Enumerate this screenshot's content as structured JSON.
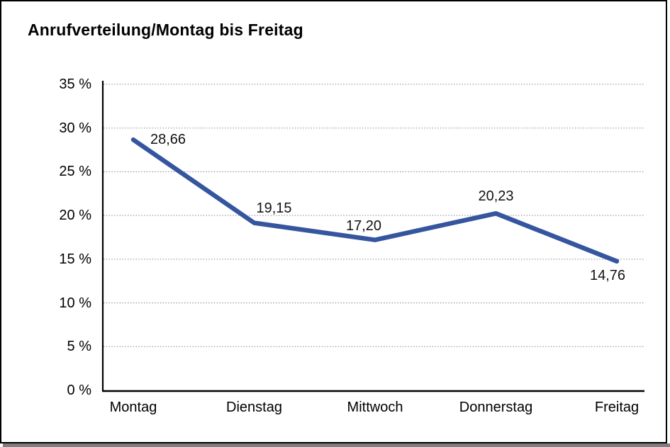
{
  "window": {
    "title": "Anrufverteilung/Montag bis Freitag"
  },
  "chart_data": {
    "type": "line",
    "title": "Anrufverteilung/Montag bis Freitag",
    "categories": [
      "Montag",
      "Dienstag",
      "Mittwoch",
      "Donnerstag",
      "Freitag"
    ],
    "values": [
      28.66,
      19.15,
      17.2,
      20.23,
      14.76
    ],
    "point_labels": [
      "28,66",
      "19,15",
      "17,20",
      "20,23",
      "14,76"
    ],
    "xlabel": "",
    "ylabel": "",
    "ylim": [
      0,
      35
    ],
    "ytick_step": 5,
    "ytick_labels": [
      "0 %",
      "5 %",
      "10 %",
      "15 %",
      "20 %",
      "25 %",
      "30 %",
      "35 %"
    ],
    "grid": "horizontal-dotted",
    "legend": "none",
    "colors": {
      "line": "#35569F",
      "gridline": "#999999",
      "axis": "#000000",
      "text": "#000000",
      "frame_shadow": "#7f7f7f",
      "background": "#ffffff"
    }
  }
}
